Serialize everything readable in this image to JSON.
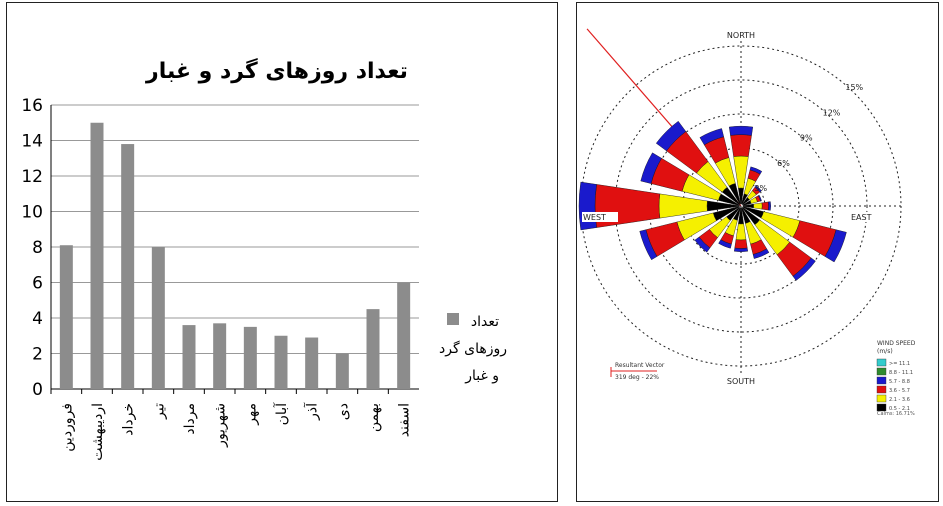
{
  "chart_data": [
    {
      "type": "bar",
      "title": "تعداد روزهای گرد و غبار",
      "categories": [
        "فروردین",
        "اردیبهشت",
        "خرداد",
        "تیر",
        "مرداد",
        "شهریور",
        "مهر",
        "آبان",
        "آذر",
        "دی",
        "بهمن",
        "اسفند"
      ],
      "series": [
        {
          "name": "تعداد روزهای گرد و غبار",
          "values": [
            8.1,
            15,
            13.8,
            8,
            3.6,
            3.7,
            3.5,
            3,
            2.9,
            2,
            4.5,
            6
          ]
        }
      ],
      "ylim": [
        0,
        16
      ],
      "yticks": [
        0,
        2,
        4,
        6,
        8,
        10,
        12,
        14,
        16
      ],
      "grid": true,
      "legend": "right",
      "colors": {
        "bar": "#8c8c8c",
        "grid": "#999999"
      }
    },
    {
      "type": "rose",
      "directions": [
        "NORTH",
        "EAST",
        "SOUTH",
        "WEST"
      ],
      "ring_labels": [
        "3%",
        "6%",
        "9%",
        "12%",
        "15%"
      ],
      "resultant_vector": {
        "label": "Resultant Vector",
        "value": "319 deg - 22%"
      },
      "legend": {
        "title": "WIND SPEED",
        "subtitle": "(m/s)",
        "items": [
          {
            "label": ">= 11.1",
            "color": "#33cccc"
          },
          {
            "label": "8.8 - 11.1",
            "color": "#2e8b2e"
          },
          {
            "label": "5.7 - 8.8",
            "color": "#1a1acc"
          },
          {
            "label": "3.6 - 5.7",
            "color": "#e01010"
          },
          {
            "label": "2.1 - 3.6",
            "color": "#f5f000"
          },
          {
            "label": "0.5 - 2.1",
            "color": "#000000"
          }
        ],
        "calms": "Calms: 16.71%"
      },
      "petals": [
        {
          "dir": 0,
          "segs": [
            1.5,
            3.0,
            2.0,
            0.8
          ]
        },
        {
          "dir": 22.5,
          "segs": [
            1.0,
            1.5,
            0.8,
            0.3
          ]
        },
        {
          "dir": 45,
          "segs": [
            0.8,
            0.8,
            0.4,
            0.2
          ]
        },
        {
          "dir": 67.5,
          "segs": [
            0.8,
            0.6,
            0.3,
            0.1
          ]
        },
        {
          "dir": 90,
          "segs": [
            1.0,
            0.8,
            0.6,
            0.2
          ]
        },
        {
          "dir": 112.5,
          "segs": [
            2.0,
            3.5,
            3.5,
            1.0
          ]
        },
        {
          "dir": 135,
          "segs": [
            2.0,
            3.5,
            2.5,
            0.5
          ]
        },
        {
          "dir": 157.5,
          "segs": [
            1.5,
            2.0,
            1.0,
            0.4
          ]
        },
        {
          "dir": 180,
          "segs": [
            1.5,
            1.5,
            0.8,
            0.3
          ]
        },
        {
          "dir": 202.5,
          "segs": [
            1.2,
            1.5,
            0.8,
            0.4
          ]
        },
        {
          "dir": 225,
          "segs": [
            1.5,
            2.0,
            1.2,
            0.5
          ]
        },
        {
          "dir": 247.5,
          "segs": [
            2.5,
            3.5,
            3.0,
            0.6
          ]
        },
        {
          "dir": 270,
          "segs": [
            3.0,
            4.5,
            6.0,
            1.5
          ]
        },
        {
          "dir": 292.5,
          "segs": [
            2.0,
            3.5,
            3.0,
            1.0
          ]
        },
        {
          "dir": 315,
          "segs": [
            2.0,
            3.0,
            3.5,
            1.2
          ]
        },
        {
          "dir": 337.5,
          "segs": [
            2.0,
            2.5,
            2.0,
            0.8
          ]
        }
      ]
    }
  ]
}
